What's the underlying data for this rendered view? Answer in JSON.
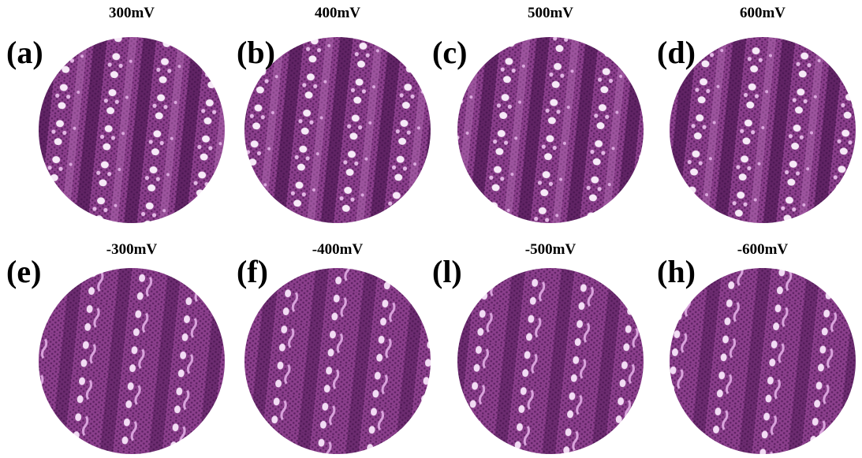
{
  "panels": [
    {
      "label": "(a)",
      "voltage": "300mV"
    },
    {
      "label": "(b)",
      "voltage": "400mV"
    },
    {
      "label": "(c)",
      "voltage": "500mV"
    },
    {
      "label": "(d)",
      "voltage": "600mV"
    },
    {
      "label": "(e)",
      "voltage": "-300mV"
    },
    {
      "label": "(f)",
      "voltage": "-400mV"
    },
    {
      "label": "(l)",
      "voltage": "-500mV"
    },
    {
      "label": "(h)",
      "voltage": "-600mV"
    }
  ]
}
